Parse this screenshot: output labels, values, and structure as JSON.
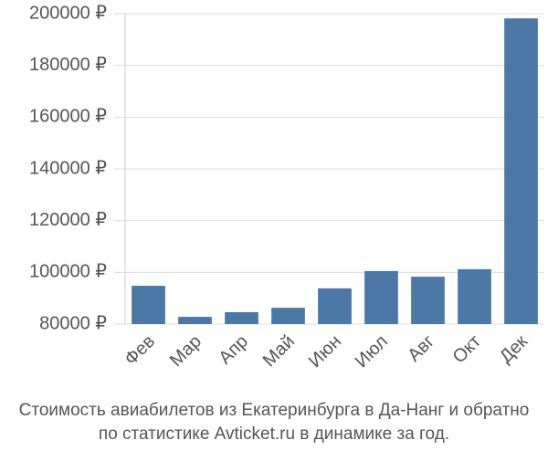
{
  "chart_data": {
    "type": "bar",
    "title_lines": [
      "Стоимость авиабилетов из Екатеринбурга в Да-Нанг и обратно",
      "по статистике Avticket.ru в динамике за год."
    ],
    "categories": [
      "Фев",
      "Мар",
      "Апр",
      "Май",
      "Июн",
      "Июл",
      "Авг",
      "Окт",
      "Дек"
    ],
    "values": [
      94800,
      82800,
      84600,
      86300,
      93800,
      100500,
      98300,
      101200,
      198200
    ],
    "color": "#4c78a8",
    "ylim": [
      80000,
      200000
    ],
    "yticks": [
      {
        "value": 80000,
        "label": "80000 ₽"
      },
      {
        "value": 100000,
        "label": "100000 ₽"
      },
      {
        "value": 120000,
        "label": "120000 ₽"
      },
      {
        "value": 140000,
        "label": "140000 ₽"
      },
      {
        "value": 160000,
        "label": "160000 ₽"
      },
      {
        "value": 180000,
        "label": "180000 ₽"
      },
      {
        "value": 200000,
        "label": "200000 ₽"
      }
    ],
    "grid": true
  }
}
